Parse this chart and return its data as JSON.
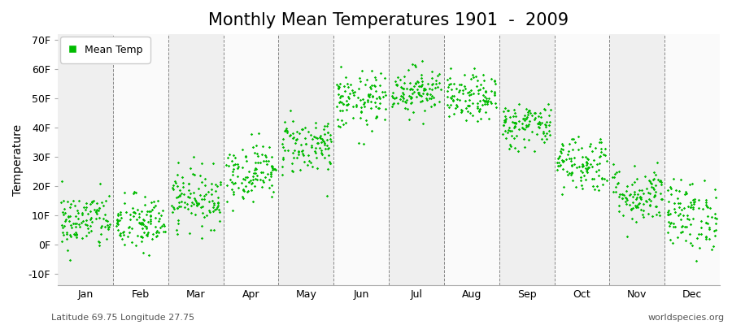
{
  "title": "Monthly Mean Temperatures 1901  -  2009",
  "ylabel": "Temperature",
  "ylim": [
    -14,
    72
  ],
  "yticks": [
    -10,
    0,
    10,
    20,
    30,
    40,
    50,
    60,
    70
  ],
  "ytick_labels": [
    "-10F",
    "0F",
    "10F",
    "20F",
    "30F",
    "40F",
    "50F",
    "60F",
    "70F"
  ],
  "month_labels": [
    "Jan",
    "Feb",
    "Mar",
    "Apr",
    "May",
    "Jun",
    "Jul",
    "Aug",
    "Sep",
    "Oct",
    "Nov",
    "Dec"
  ],
  "dot_color": "#00bb00",
  "background_color": "#f5f5f5",
  "band_color_odd": "#efefef",
  "band_color_even": "#fafafa",
  "legend_label": "Mean Temp",
  "bottom_left": "Latitude 69.75 Longitude 27.75",
  "bottom_right": "worldspecies.org",
  "title_fontsize": 15,
  "axis_fontsize": 10,
  "tick_fontsize": 9,
  "annotation_fontsize": 8,
  "monthly_mean_F": [
    8,
    7,
    16,
    25,
    34,
    49,
    53,
    50,
    41,
    28,
    17,
    10
  ],
  "monthly_std_F": [
    5,
    5,
    5,
    5,
    5,
    5,
    4,
    4,
    4,
    5,
    5,
    6
  ],
  "n_years": 109
}
